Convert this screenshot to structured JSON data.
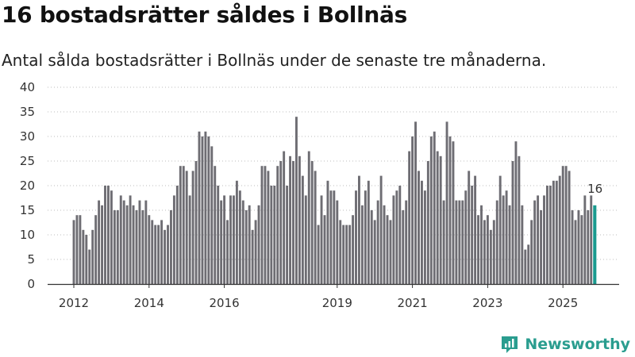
{
  "header": {
    "title": "16 bostadsrätter såldes i Bollnäs",
    "subtitle": "Antal sålda bostadsrätter i Bollnäs under de senaste tre månaderna."
  },
  "brand": {
    "name": "Newsworthy",
    "icon": "newsworthy-logo-icon"
  },
  "colors": {
    "bar": "#6e6d73",
    "highlight": "#1a9a8f",
    "axis": "#333333"
  },
  "chart_data": {
    "type": "bar",
    "title": "16 bostadsrätter såldes i Bollnäs",
    "xlabel": "",
    "ylabel": "",
    "ylim": [
      0,
      40
    ],
    "yticks": [
      0,
      5,
      10,
      15,
      20,
      25,
      30,
      35,
      40
    ],
    "grid": "horizontal dotted",
    "start": "2012-01",
    "frequency": "monthly",
    "x_tick_labels": [
      {
        "label": "2012",
        "index": 0
      },
      {
        "label": "2014",
        "index": 24
      },
      {
        "label": "2016",
        "index": 48
      },
      {
        "label": "2019",
        "index": 84
      },
      {
        "label": "2021",
        "index": 108
      },
      {
        "label": "2023",
        "index": 132
      },
      {
        "label": "2025",
        "index": 156
      }
    ],
    "values": [
      13,
      14,
      14,
      11,
      10,
      7,
      11,
      14,
      17,
      16,
      20,
      20,
      19,
      15,
      15,
      18,
      17,
      16,
      18,
      16,
      15,
      17,
      15,
      17,
      14,
      13,
      12,
      12,
      13,
      11,
      12,
      15,
      18,
      20,
      24,
      24,
      23,
      18,
      23,
      25,
      31,
      30,
      31,
      30,
      28,
      24,
      20,
      17,
      18,
      13,
      18,
      18,
      21,
      19,
      17,
      15,
      16,
      11,
      13,
      16,
      24,
      24,
      23,
      20,
      20,
      24,
      25,
      27,
      20,
      26,
      25,
      34,
      26,
      22,
      18,
      27,
      25,
      23,
      12,
      18,
      14,
      21,
      19,
      19,
      17,
      13,
      12,
      12,
      12,
      14,
      19,
      22,
      16,
      19,
      21,
      15,
      13,
      17,
      22,
      16,
      14,
      13,
      18,
      19,
      20,
      15,
      17,
      27,
      30,
      33,
      23,
      21,
      19,
      25,
      30,
      31,
      27,
      26,
      17,
      33,
      30,
      29,
      17,
      17,
      17,
      19,
      23,
      20,
      22,
      14,
      16,
      13,
      14,
      11,
      13,
      17,
      22,
      18,
      19,
      16,
      25,
      29,
      26,
      16,
      7,
      8,
      13,
      17,
      18,
      15,
      18,
      20,
      20,
      21,
      21,
      22,
      24,
      24,
      23,
      15,
      13,
      15,
      14,
      18,
      15,
      18,
      16
    ],
    "highlight_last": true,
    "annotation": {
      "label": "16",
      "target": "last"
    }
  }
}
